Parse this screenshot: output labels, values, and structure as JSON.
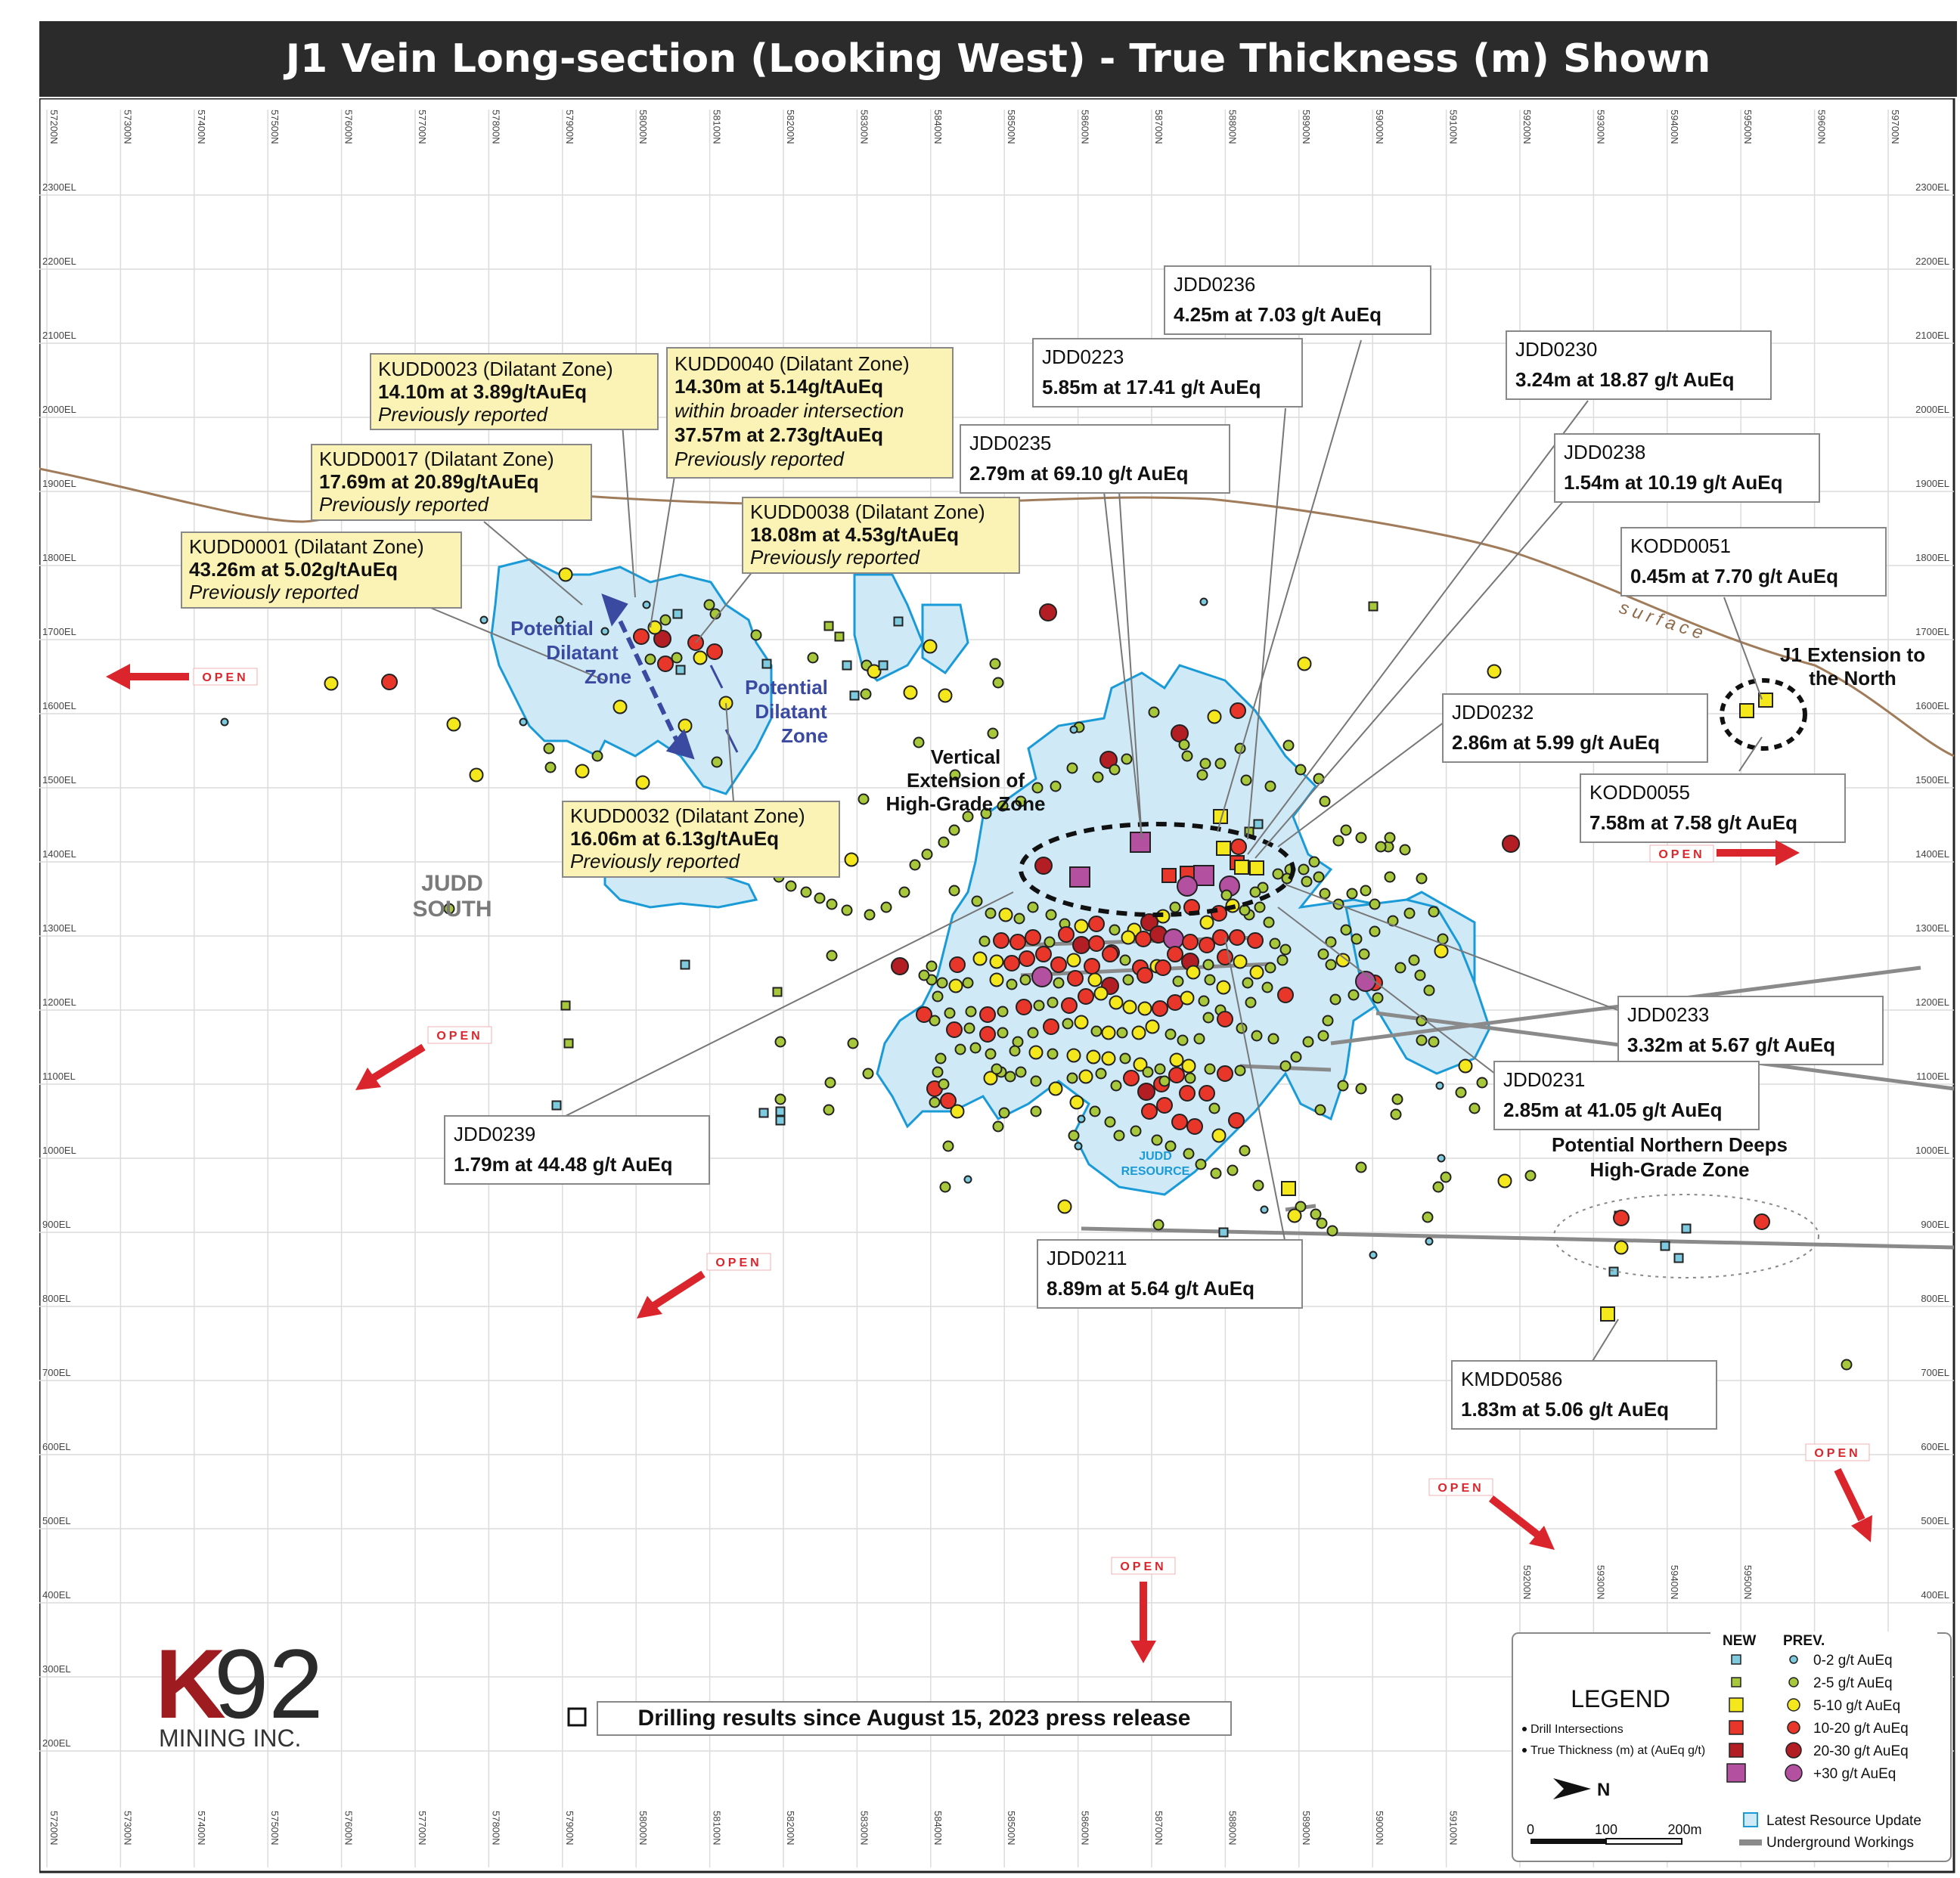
{
  "title": "J1 Vein Long-section (Looking West) - True Thickness (m) Shown",
  "grid": {
    "northings": [
      "57200N",
      "57300N",
      "57400N",
      "57500N",
      "57600N",
      "57700N",
      "57800N",
      "57900N",
      "58000N",
      "58100N",
      "58200N",
      "58300N",
      "58400N",
      "58500N",
      "58600N",
      "58700N",
      "58800N",
      "58900N",
      "59000N",
      "59100N",
      "59200N",
      "59300N",
      "59400N",
      "59500N",
      "59600N",
      "59700N"
    ],
    "bottom_northings": [
      "57200N",
      "57300N",
      "57400N",
      "57500N",
      "57600N",
      "57700N",
      "57800N",
      "57900N",
      "58000N",
      "58100N",
      "58200N",
      "58300N",
      "58400N",
      "58500N",
      "58600N",
      "58700N",
      "58800N",
      "58900N",
      "59000N",
      "59100N"
    ],
    "inner_northings": [
      "59200N",
      "59300N",
      "59400N",
      "59500N"
    ],
    "elevations": [
      "2300EL",
      "2200EL",
      "2100EL",
      "2000EL",
      "1900EL",
      "1800EL",
      "1700EL",
      "1600EL",
      "1500EL",
      "1400EL",
      "1300EL",
      "1200EL",
      "1100EL",
      "1000EL",
      "900EL",
      "800EL",
      "700EL",
      "600EL",
      "500EL",
      "400EL",
      "300EL",
      "200EL"
    ]
  },
  "callouts_yellow": [
    {
      "id": "kudd0023",
      "title": "KUDD0023 (Dilatant Zone)",
      "value": "14.10m at 3.89g/tAuEq",
      "note": "Previously reported"
    },
    {
      "id": "kudd0040",
      "title": "KUDD0040 (Dilatant Zone)",
      "value": "14.30m at 5.14g/tAuEq",
      "note": "within broader intersection",
      "value2": "37.57m at 2.73g/tAuEq",
      "note2": "Previously reported"
    },
    {
      "id": "kudd0017",
      "title": "KUDD0017 (Dilatant Zone)",
      "value": "17.69m at 20.89g/tAuEq",
      "note": "Previously reported"
    },
    {
      "id": "kudd0038",
      "title": "KUDD0038 (Dilatant Zone)",
      "value": "18.08m at 4.53g/tAuEq",
      "note": "Previously reported"
    },
    {
      "id": "kudd0001",
      "title": "KUDD0001 (Dilatant Zone)",
      "value": "43.26m at 5.02g/tAuEq",
      "note": "Previously reported"
    },
    {
      "id": "kudd0032",
      "title": "KUDD0032 (Dilatant Zone)",
      "value": "16.06m at 6.13g/tAuEq",
      "note": "Previously reported"
    }
  ],
  "callouts_white": [
    {
      "id": "jdd0236",
      "title": "JDD0236",
      "value": "4.25m at 7.03 g/t AuEq"
    },
    {
      "id": "jdd0223",
      "title": "JDD0223",
      "value": "5.85m at 17.41 g/t AuEq"
    },
    {
      "id": "jdd0230",
      "title": "JDD0230",
      "value": "3.24m at 18.87 g/t AuEq"
    },
    {
      "id": "jdd0235",
      "title": "JDD0235",
      "value": "2.79m at 69.10 g/t AuEq"
    },
    {
      "id": "jdd0238",
      "title": "JDD0238",
      "value": "1.54m at 10.19 g/t AuEq"
    },
    {
      "id": "kodd0051",
      "title": "KODD0051",
      "value": "0.45m at 7.70 g/t AuEq"
    },
    {
      "id": "jdd0232",
      "title": "JDD0232",
      "value": "2.86m at 5.99 g/t AuEq"
    },
    {
      "id": "kodd0055",
      "title": "KODD0055",
      "value": "7.58m at 7.58 g/t AuEq"
    },
    {
      "id": "jdd0233",
      "title": "JDD0233",
      "value": "3.32m at 5.67 g/t AuEq"
    },
    {
      "id": "jdd0231",
      "title": "JDD0231",
      "value": "2.85m at 41.05 g/t AuEq"
    },
    {
      "id": "jdd0239",
      "title": "JDD0239",
      "value": "1.79m at 44.48 g/t AuEq"
    },
    {
      "id": "jdd0211",
      "title": "JDD0211",
      "value": "8.89m at 5.64 g/t AuEq"
    },
    {
      "id": "kmdd0586",
      "title": "KMDD0586",
      "value": "1.83m at 5.06 g/t AuEq"
    }
  ],
  "labels": {
    "surface": "surface",
    "open": "OPEN",
    "judd_south_1": "JUDD",
    "judd_south_2": "SOUTH",
    "judd_resource_1": "JUDD",
    "judd_resource_2": "RESOURCE",
    "vertical_ext": [
      "Vertical",
      "Extension of",
      "High-Grade Zone"
    ],
    "j1_ext": [
      "J1 Extension to",
      "the North"
    ],
    "northern_deeps": [
      "Potential Northern Deeps",
      "High-Grade Zone"
    ],
    "dilatant_a": [
      "Potential",
      "Dilatant",
      "Zone"
    ],
    "dilatant_b": [
      "Potential",
      "Dilatant",
      "Zone"
    ],
    "drilling_results": "Drilling results since August 15, 2023 press release"
  },
  "logo": {
    "mark_k": "K",
    "mark_num": "92",
    "sub": "MINING INC.",
    "color_k": "#9e1b20",
    "color_num": "#2b2b2b"
  },
  "legend": {
    "title": "LEGEND",
    "col_new": "NEW",
    "col_prev": "PREV.",
    "items": [
      {
        "label": "0-2 g/t AuEq",
        "color": "#7ecbe0"
      },
      {
        "label": "2-5 g/t AuEq",
        "color": "#a7c83b"
      },
      {
        "label": "5-10 g/t AuEq",
        "color": "#f4e81c"
      },
      {
        "label": "10-20 g/t AuEq",
        "color": "#e8362b"
      },
      {
        "label": "20-30 g/t AuEq",
        "color": "#b21e23"
      },
      {
        "label": "+30 g/t AuEq",
        "color": "#b3509f"
      }
    ],
    "bullet1": "Drill Intersections",
    "bullet2": "True Thickness (m) at (AuEq g/t)",
    "north": "N",
    "scale": [
      "0",
      "100",
      "200m"
    ],
    "resource": "Latest Resource Update",
    "workings": "Underground Workings"
  },
  "colors": {
    "resource_fill": "#cfe9f7",
    "resource_line": "#1a9bd7",
    "surface": "#a07c5a",
    "open": "#d9252b",
    "callout_yellow": "#fbf3b5",
    "dilatant": "#3a4aa0"
  }
}
